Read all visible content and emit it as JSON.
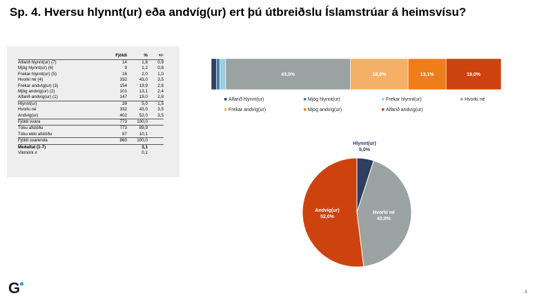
{
  "title": "Sp. 4. Hversu hlynnt(ur) eða andvíg(ur) ert þú útbreiðslu Íslamstrúar á heimsvísu?",
  "table": {
    "headers": [
      "",
      "Fjöldi",
      "%",
      "+/-"
    ],
    "rows": [
      {
        "label": "Alfarið hlynnt(ur) (7)",
        "n": "14",
        "p": "1,8",
        "m": "0,9"
      },
      {
        "label": "Mjög hlynnt(ur) (6)",
        "n": "9",
        "p": "1,2",
        "m": "0,8"
      },
      {
        "label": "Frekar hlynnt(ur) (5)",
        "n": "16",
        "p": "2,0",
        "m": "1,0"
      },
      {
        "label": "Hvorki né (4)",
        "n": "332",
        "p": "43,0",
        "m": "3,5"
      },
      {
        "label": "Frekar andvíg(ur) (3)",
        "n": "154",
        "p": "19,9",
        "m": "2,8"
      },
      {
        "label": "Mjög andvíg(ur) (2)",
        "n": "101",
        "p": "13,1",
        "m": "2,4"
      },
      {
        "label": "Alfarið andvíg(ur) (1)",
        "n": "147",
        "p": "19,0",
        "m": "2,8",
        "sep": true
      },
      {
        "label": "Hlynnt(ur)",
        "n": "39",
        "p": "5,0",
        "m": "1,5"
      },
      {
        "label": "Hvorki né",
        "n": "332",
        "p": "43,0",
        "m": "3,5"
      },
      {
        "label": "Andvíg(ur)",
        "n": "402",
        "p": "52,0",
        "m": "3,5",
        "sep": true
      },
      {
        "label": "Fjöldi svara",
        "n": "773",
        "p": "100,0",
        "m": "",
        "sep": true
      },
      {
        "label": "Tóku afstöðu",
        "n": "773",
        "p": "89,9",
        "m": ""
      },
      {
        "label": "Tóku ekki afstöðu",
        "n": "87",
        "p": "10,1",
        "m": "",
        "sep": true
      },
      {
        "label": "Fjöldi svarenda",
        "n": "860",
        "p": "100,0",
        "m": "",
        "sep": true
      },
      {
        "label": "Meðaltal (1-7)",
        "n": "",
        "p": "3,1",
        "m": "",
        "bold": true
      },
      {
        "label": "Vikmörk ±",
        "n": "",
        "p": "0,1",
        "m": ""
      }
    ]
  },
  "chart_data": [
    {
      "type": "bar",
      "stacked": true,
      "orientation": "horizontal",
      "title": "",
      "categories": [
        ""
      ],
      "series": [
        {
          "name": "Alfarið hlynnt(ur)",
          "values": [
            1.8
          ],
          "color": "#2e3f5f",
          "label": ""
        },
        {
          "name": "Mjög hlynnt(ur)",
          "values": [
            1.2
          ],
          "color": "#3d7fb0",
          "label": ""
        },
        {
          "name": "Frekar hlynnt(ur)",
          "values": [
            2.0
          ],
          "color": "#9ccde0",
          "label": ""
        },
        {
          "name": "Hvorki né",
          "values": [
            43.0
          ],
          "color": "#9aa2a2",
          "label": "43,0%"
        },
        {
          "name": "Frekar andvíg(ur)",
          "values": [
            19.9
          ],
          "color": "#f4b066",
          "label": "19,9%"
        },
        {
          "name": "Mjög andvíg(ur)",
          "values": [
            13.1
          ],
          "color": "#ee7d1a",
          "label": "13,1%"
        },
        {
          "name": "Alfarið andvíg(ur)",
          "values": [
            19.0
          ],
          "color": "#cc4310",
          "label": "19,0%"
        }
      ],
      "xlim": [
        0,
        100
      ],
      "legend": "bottom"
    },
    {
      "type": "pie",
      "title": "",
      "slices": [
        {
          "name": "Hlynnt(ur)",
          "value": 5.0,
          "label": "5,0%",
          "color": "#2e3f5f"
        },
        {
          "name": "Hvorki né",
          "value": 43.0,
          "label": "43,0%",
          "color": "#9aa2a2"
        },
        {
          "name": "Andvíg(ur)",
          "value": 52.0,
          "label": "52,0%",
          "color": "#cc4310"
        }
      ]
    }
  ],
  "footer": {
    "logo": "G",
    "page_number": "3"
  }
}
